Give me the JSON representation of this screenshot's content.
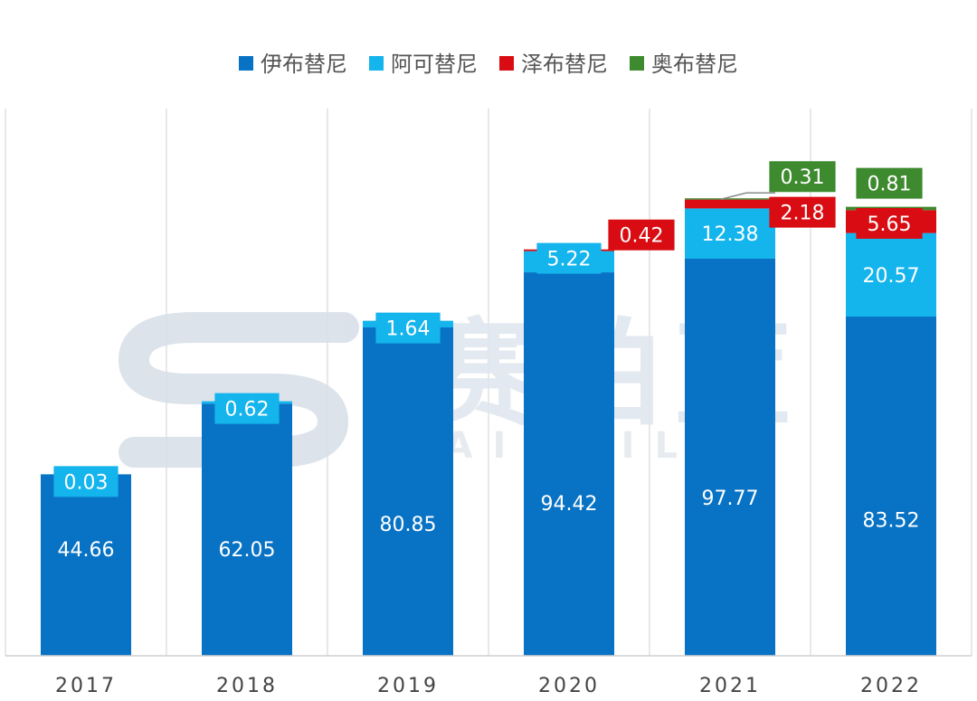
{
  "chart_data": {
    "type": "bar",
    "stacked": true,
    "categories": [
      "2017",
      "2018",
      "2019",
      "2020",
      "2021",
      "2022"
    ],
    "series": [
      {
        "name": "伊布替尼",
        "color": "#0872C4",
        "values": [
          44.66,
          62.05,
          80.85,
          94.42,
          97.77,
          83.52
        ],
        "labels": [
          "44.66",
          "62.05",
          "80.85",
          "94.42",
          "97.77",
          "83.52"
        ]
      },
      {
        "name": "阿可替尼",
        "color": "#14B4EC",
        "values": [
          0.03,
          0.62,
          1.64,
          5.22,
          12.38,
          20.57
        ],
        "labels": [
          "0.03",
          "0.62",
          "1.64",
          "5.22",
          "12.38",
          "20.57"
        ]
      },
      {
        "name": "泽布替尼",
        "color": "#D80C12",
        "values": [
          0,
          0,
          0,
          0.42,
          2.18,
          5.65
        ],
        "labels": [
          "",
          "",
          "",
          "0.42",
          "2.18",
          "5.65"
        ]
      },
      {
        "name": "奥布替尼",
        "color": "#3E8A2E",
        "values": [
          0,
          0,
          0,
          0,
          0.31,
          0.81
        ],
        "labels": [
          "",
          "",
          "",
          "",
          "0.31",
          "0.81"
        ]
      }
    ],
    "ylim": [
      0,
      125
    ],
    "grid": "vertical",
    "legend": "top-center"
  },
  "watermark": {
    "main": "赛柏蓝",
    "sub": "SAIBAILAN"
  }
}
